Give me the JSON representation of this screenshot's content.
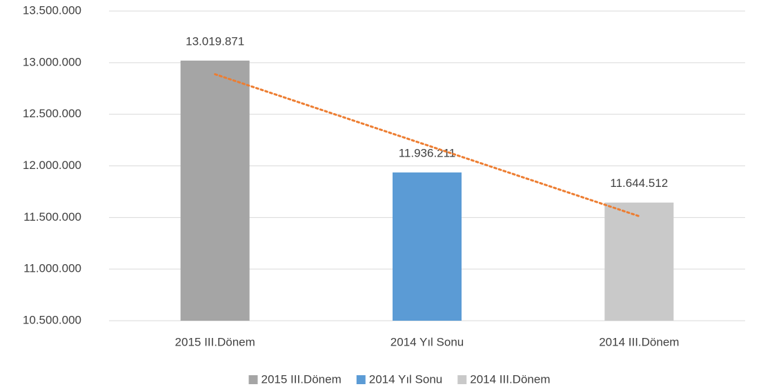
{
  "chart_data": {
    "type": "bar",
    "categories": [
      "2015 III.Dönem",
      "2014 Yıl Sonu",
      "2014 III.Dönem"
    ],
    "values": [
      13019871,
      11936211,
      11644512
    ],
    "value_labels": [
      "13.019.871",
      "11.936.211",
      "11.644.512"
    ],
    "colors": [
      "#a5a5a5",
      "#5b9bd5",
      "#c9c9c9"
    ],
    "ylim": [
      10500000,
      13500000
    ],
    "yticks": [
      {
        "value": 10500000,
        "label": "10.500.000"
      },
      {
        "value": 11000000,
        "label": "11.000.000"
      },
      {
        "value": 11500000,
        "label": "11.500.000"
      },
      {
        "value": 12000000,
        "label": "12.000.000"
      },
      {
        "value": 12500000,
        "label": "12.500.000"
      },
      {
        "value": 13000000,
        "label": "13.000.000"
      },
      {
        "value": 13500000,
        "label": "13.500.000"
      }
    ],
    "grid": true,
    "legend": "bottom",
    "trendline": {
      "type": "linear",
      "color": "#ed7d31"
    }
  }
}
